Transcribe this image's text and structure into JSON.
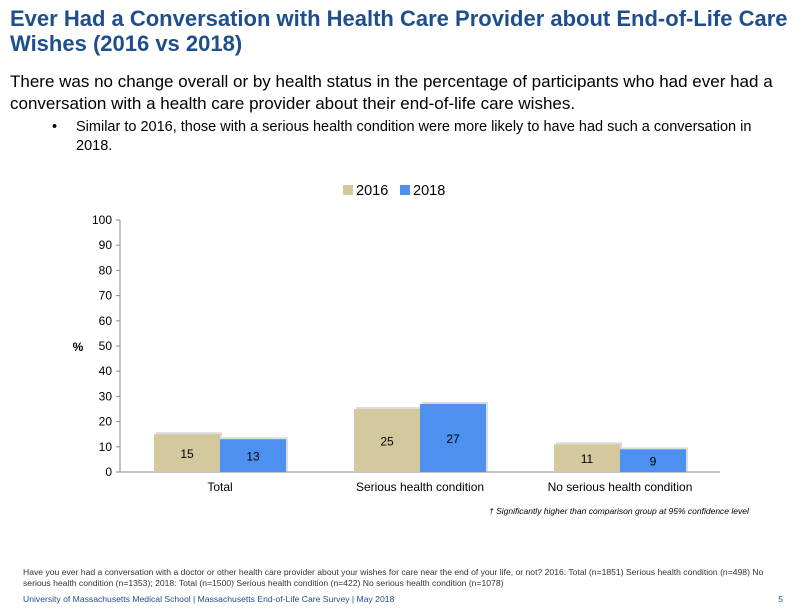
{
  "header": {
    "title": "Ever Had a Conversation with Health Care Provider about End-of-Life Care Wishes (2016 vs 2018)",
    "subtitle": "There was no change overall or by health status in the percentage of participants who had ever had a conversation with a health care provider about their end-of-life care wishes.",
    "bullet_symbol": "•",
    "bullet": "Similar to 2016, those with a serious health condition were more likely to have had such a conversation in 2018."
  },
  "chart_data": {
    "type": "bar",
    "categories": [
      "Total",
      "Serious health condition",
      "No serious health condition"
    ],
    "series": [
      {
        "name": "2016",
        "values": [
          15,
          25,
          11
        ],
        "color": "#d4c99c"
      },
      {
        "name": "2018",
        "values": [
          13,
          27,
          9
        ],
        "color": "#4d90f0"
      }
    ],
    "ylabel": "%",
    "ylim": [
      0,
      100
    ],
    "yticks": [
      0,
      10,
      20,
      30,
      40,
      50,
      60,
      70,
      80,
      90,
      100
    ],
    "legend_position": "top-center",
    "grid": false
  },
  "notes": {
    "significance": "† Significantly higher than comparison group at 95% confidence level",
    "footnote": "Have you ever had a conversation with a doctor or other health care provider about your wishes for care near the end of your life, or not? 2016: Total (n=1851) Serious health condition (n=498) No serious health condition (n=1353); 2018: Total (n=1500) Serious health condition (n=422) No serious health condition (n=1078)"
  },
  "footer": {
    "source": "University of Massachusetts Medical School | Massachusetts End-of-Life Care Survey | May 2018",
    "page_number": "5"
  },
  "colors": {
    "title": "#1f4e8c",
    "bar_2016": "#d4c99c",
    "bar_2018": "#4d90f0"
  }
}
